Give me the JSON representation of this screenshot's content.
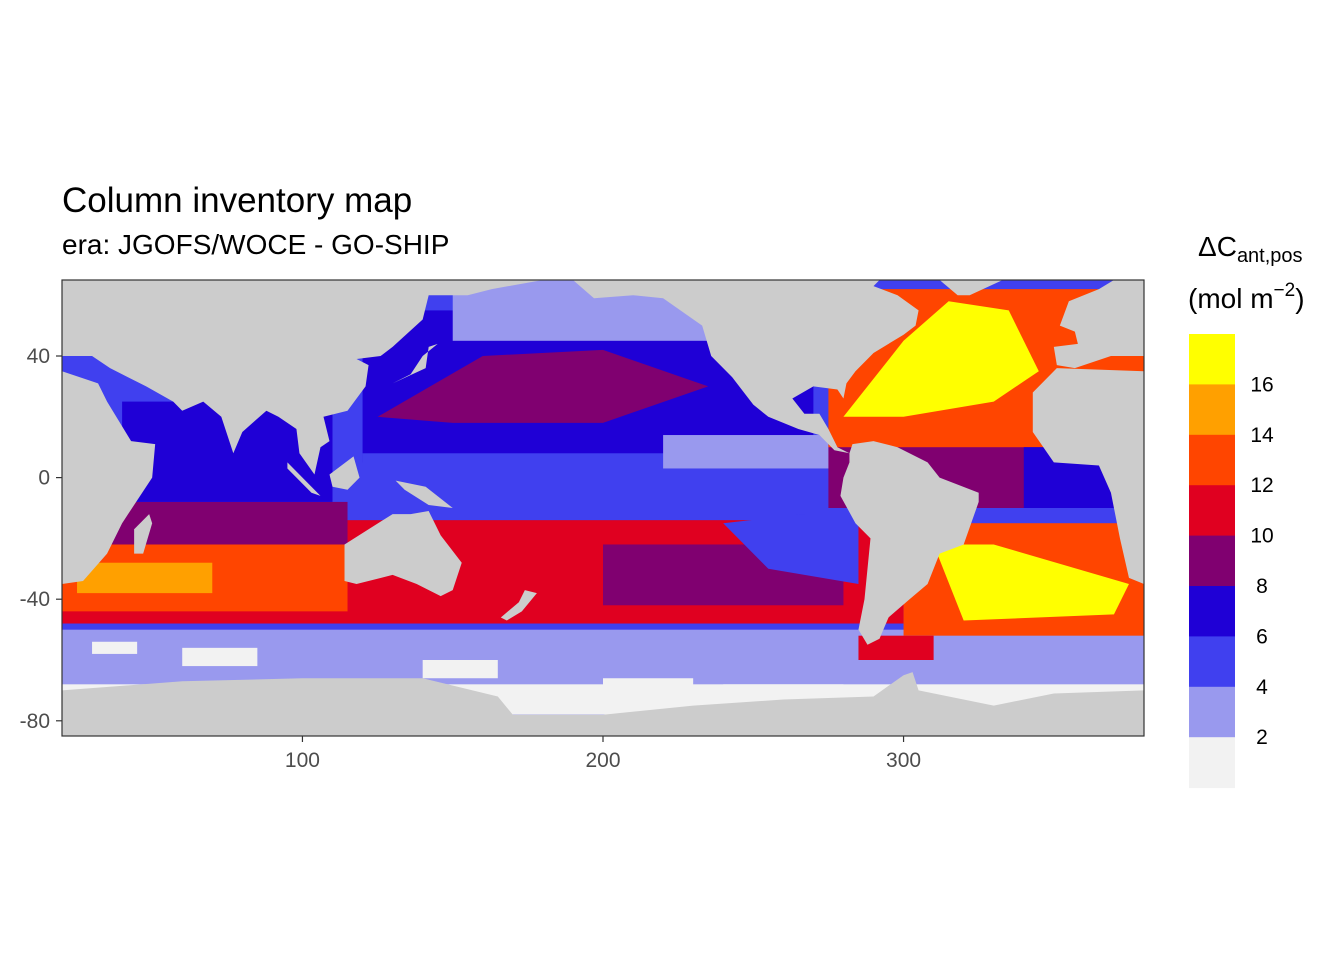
{
  "title": "Column inventory map",
  "subtitle": "era: JGOFS/WOCE - GO-SHIP",
  "chart_data": {
    "type": "heatmap",
    "xlim": [
      20,
      380
    ],
    "ylim": [
      -85,
      65
    ],
    "x_ticks": [
      100,
      200,
      300
    ],
    "y_ticks": [
      40,
      0,
      -40,
      -80
    ],
    "grid": false,
    "land_color": "#cccccc",
    "legend": {
      "title_main": "ΔC",
      "title_sub": "ant,pos",
      "unit_open": "(mol m",
      "unit_exp": "−2",
      "unit_close": ")",
      "placement": "right",
      "breaks": [
        2,
        4,
        6,
        8,
        10,
        12,
        14,
        16
      ],
      "colors": [
        "#f2f2f2",
        "#9999ee",
        "#4040ef",
        "#1f00d6",
        "#800070",
        "#e00020",
        "#ff4500",
        "#ffa000",
        "#ffff00"
      ]
    }
  }
}
